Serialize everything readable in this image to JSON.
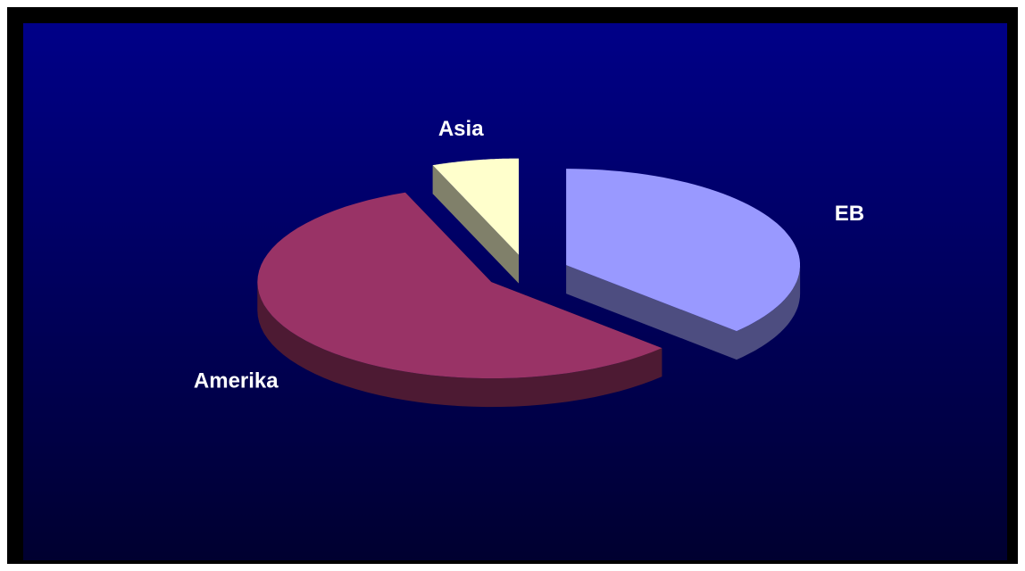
{
  "chart_data": {
    "type": "pie3d",
    "categories": [
      "EB",
      "Amerika",
      "Asia"
    ],
    "values": [
      37,
      57,
      6
    ],
    "colors": [
      "#9999ff",
      "#993366",
      "#ffffcc"
    ],
    "side_colors": [
      "#4d4d80",
      "#4d1a33",
      "#80806a"
    ]
  }
}
